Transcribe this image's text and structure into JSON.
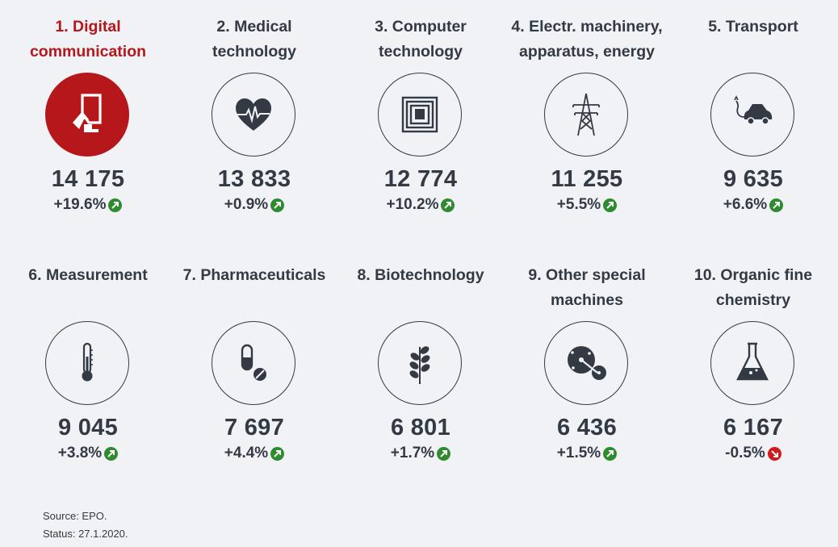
{
  "items": [
    {
      "title": "1. Digital\ncommunication",
      "value": "14 175",
      "change": "+19.6%",
      "trend": "up",
      "icon": "hand-tablet-icon",
      "active": true
    },
    {
      "title": "2. Medical\ntechnology",
      "value": "13 833",
      "change": "+0.9%",
      "trend": "up",
      "icon": "heartbeat-icon",
      "active": false
    },
    {
      "title": "3. Computer\ntechnology",
      "value": "12 774",
      "change": "+10.2%",
      "trend": "up",
      "icon": "chip-icon",
      "active": false
    },
    {
      "title": "4. Electr. machinery,\napparatus, energy",
      "value": "11 255",
      "change": "+5.5%",
      "trend": "up",
      "icon": "power-pylon-icon",
      "active": false
    },
    {
      "title": "5. Transport",
      "value": "9 635",
      "change": "+6.6%",
      "trend": "up",
      "icon": "electric-car-icon",
      "active": false
    },
    {
      "title": "6. Measurement",
      "value": "9 045",
      "change": "+3.8%",
      "trend": "up",
      "icon": "thermometer-icon",
      "active": false
    },
    {
      "title": "7. Pharmaceuticals",
      "value": "7 697",
      "change": "+4.4%",
      "trend": "up",
      "icon": "pills-icon",
      "active": false
    },
    {
      "title": "8. Biotechnology",
      "value": "6 801",
      "change": "+1.7%",
      "trend": "up",
      "icon": "plant-icon",
      "active": false
    },
    {
      "title": "9. Other special\nmachines",
      "value": "6 436",
      "change": "+1.5%",
      "trend": "up",
      "icon": "saw-blade-icon",
      "active": false
    },
    {
      "title": "10. Organic fine\nchemistry",
      "value": "6 167",
      "change": "-0.5%",
      "trend": "down",
      "icon": "flask-icon",
      "active": false
    }
  ],
  "footer": {
    "source": "Source: EPO.",
    "status": "Status: 27.1.2020."
  },
  "colors": {
    "active": "#b5171a",
    "text": "#333a44",
    "up": "#2e8b2e",
    "down": "#d11a1a",
    "background": "#f1f2f6"
  }
}
